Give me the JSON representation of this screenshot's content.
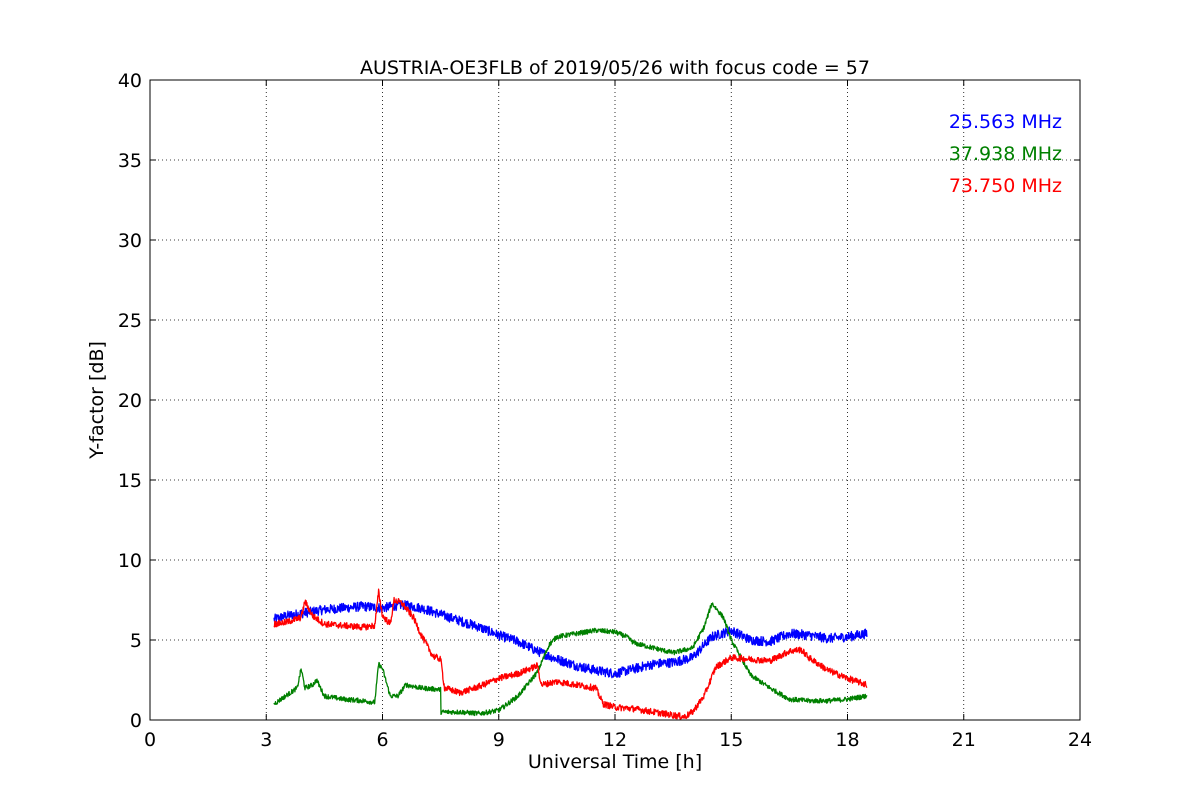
{
  "chart_data": {
    "type": "line",
    "title": "AUSTRIA-OE3FLB of 2019/05/26 with focus code = 57",
    "xlabel": "Universal Time [h]",
    "ylabel": "Y-factor [dB]",
    "xlim": [
      0,
      24
    ],
    "ylim": [
      0,
      40
    ],
    "xticks": [
      0,
      3,
      6,
      9,
      12,
      15,
      18,
      21,
      24
    ],
    "yticks": [
      0,
      5,
      10,
      15,
      20,
      25,
      30,
      35,
      40
    ],
    "grid": true,
    "legend_position": "top-right",
    "series": [
      {
        "name": "25.563 MHz",
        "color": "#0000ff",
        "noise": 0.3,
        "x": [
          3.2,
          3.5,
          4.0,
          4.5,
          5.0,
          5.5,
          6.0,
          6.5,
          7.0,
          7.5,
          8.0,
          8.5,
          9.0,
          9.5,
          10.0,
          10.5,
          11.0,
          11.5,
          12.0,
          12.5,
          13.0,
          13.5,
          14.0,
          14.5,
          15.0,
          15.5,
          16.0,
          16.5,
          17.0,
          17.5,
          18.0,
          18.5
        ],
        "y": [
          6.3,
          6.5,
          6.7,
          6.9,
          7.0,
          7.1,
          7.0,
          7.2,
          7.0,
          6.6,
          6.2,
          5.8,
          5.3,
          4.9,
          4.3,
          3.8,
          3.4,
          3.1,
          2.9,
          3.2,
          3.5,
          3.6,
          3.9,
          5.2,
          5.6,
          5.0,
          4.9,
          5.4,
          5.3,
          5.1,
          5.2,
          5.4
        ]
      },
      {
        "name": "37.938 MHz",
        "color": "#008000",
        "noise": 0.15,
        "x": [
          3.2,
          3.5,
          3.8,
          3.9,
          4.0,
          4.2,
          4.3,
          4.5,
          5.0,
          5.5,
          5.8,
          5.9,
          6.0,
          6.2,
          6.4,
          6.6,
          7.0,
          7.5,
          7.51,
          8.0,
          8.5,
          9.0,
          9.5,
          10.0,
          10.3,
          10.5,
          11.0,
          11.5,
          12.0,
          12.3,
          12.5,
          13.0,
          13.5,
          14.0,
          14.3,
          14.5,
          14.8,
          15.0,
          15.5,
          16.0,
          16.5,
          17.0,
          17.5,
          18.0,
          18.5
        ],
        "y": [
          1.0,
          1.5,
          2.0,
          3.2,
          2.0,
          2.2,
          2.5,
          1.5,
          1.3,
          1.2,
          1.1,
          3.5,
          3.2,
          1.5,
          1.5,
          2.2,
          2.0,
          1.9,
          0.5,
          0.5,
          0.4,
          0.6,
          1.5,
          3.0,
          4.7,
          5.2,
          5.4,
          5.6,
          5.5,
          5.2,
          4.8,
          4.5,
          4.2,
          4.5,
          5.8,
          7.3,
          6.4,
          5.0,
          2.8,
          2.0,
          1.3,
          1.2,
          1.2,
          1.3,
          1.5
        ]
      },
      {
        "name": "73.750 MHz",
        "color": "#ff0000",
        "noise": 0.2,
        "x": [
          3.2,
          3.5,
          3.9,
          4.0,
          4.2,
          4.5,
          5.0,
          5.5,
          5.8,
          5.9,
          6.0,
          6.2,
          6.3,
          6.5,
          6.8,
          7.0,
          7.3,
          7.5,
          7.6,
          8.0,
          8.5,
          9.0,
          9.5,
          10.0,
          10.1,
          10.5,
          11.0,
          11.5,
          11.7,
          12.0,
          12.5,
          13.0,
          13.5,
          13.8,
          14.0,
          14.3,
          14.6,
          15.0,
          15.5,
          16.0,
          16.5,
          16.8,
          17.0,
          17.5,
          18.0,
          18.5
        ],
        "y": [
          6.0,
          6.1,
          6.4,
          7.4,
          6.5,
          6.0,
          5.9,
          5.8,
          5.9,
          8.0,
          6.5,
          6.0,
          7.5,
          7.3,
          6.4,
          5.3,
          4.0,
          3.8,
          2.0,
          1.7,
          2.1,
          2.6,
          2.9,
          3.4,
          2.2,
          2.4,
          2.2,
          2.0,
          1.0,
          0.8,
          0.7,
          0.5,
          0.3,
          0.2,
          0.5,
          1.5,
          3.3,
          3.9,
          3.8,
          3.7,
          4.3,
          4.4,
          3.9,
          3.1,
          2.6,
          2.2
        ]
      }
    ]
  }
}
